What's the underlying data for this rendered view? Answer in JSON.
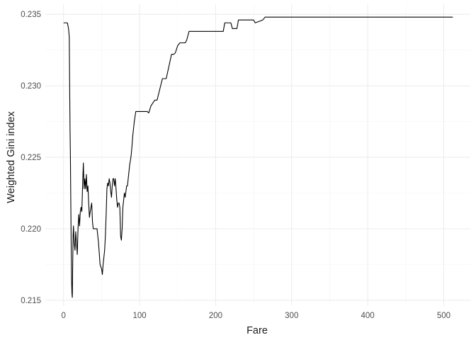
{
  "chart_data": {
    "type": "line",
    "title": "",
    "xlabel": "Fare",
    "ylabel": "Weighted Gini index",
    "xlim": [
      -24,
      535
    ],
    "ylim": [
      0.2146,
      0.2357
    ],
    "x_ticks": [
      0,
      100,
      200,
      300,
      400,
      500
    ],
    "y_ticks": [
      0.215,
      0.22,
      0.225,
      0.23,
      0.235
    ],
    "x_tick_labels": [
      "0",
      "100",
      "200",
      "300",
      "400",
      "500"
    ],
    "y_tick_labels": [
      "0.215",
      "0.220",
      "0.225",
      "0.230",
      "0.235"
    ],
    "grid": true,
    "legend": "none",
    "series": [
      {
        "color": "#000000",
        "x": [
          0,
          5,
          6.5,
          7.5,
          8,
          8.5,
          9,
          9.5,
          10,
          10.5,
          11,
          11.5,
          12,
          12.5,
          13,
          14,
          15,
          16,
          17,
          18,
          19,
          20,
          21,
          22,
          23,
          24,
          25,
          26,
          27,
          28,
          29,
          30,
          31,
          32,
          33,
          34,
          35,
          36,
          37,
          38,
          39,
          40,
          42,
          44,
          46,
          48,
          50,
          51,
          52,
          53,
          54,
          55,
          56,
          57,
          58,
          59,
          60,
          61,
          62,
          63,
          64,
          65,
          66,
          67,
          68,
          69,
          70,
          71,
          72,
          73,
          74,
          75,
          76,
          77,
          78,
          79,
          80,
          81,
          82,
          83,
          84,
          85,
          86,
          87,
          88,
          89,
          90,
          91,
          92,
          93,
          95,
          100,
          108,
          110,
          112,
          115,
          120,
          123,
          130,
          135,
          142,
          145,
          147,
          150,
          153,
          160,
          162,
          165,
          210,
          212,
          220,
          222,
          228,
          230,
          250,
          252,
          262,
          265,
          512
        ],
        "y": [
          0.2344,
          0.2344,
          0.234,
          0.2334,
          0.23,
          0.227,
          0.225,
          0.2218,
          0.219,
          0.2165,
          0.2155,
          0.2152,
          0.2175,
          0.2195,
          0.2202,
          0.219,
          0.2185,
          0.2198,
          0.219,
          0.2182,
          0.22,
          0.221,
          0.2202,
          0.2212,
          0.2215,
          0.2212,
          0.223,
          0.2246,
          0.2228,
          0.2235,
          0.2228,
          0.2238,
          0.2226,
          0.223,
          0.2218,
          0.2208,
          0.2212,
          0.2215,
          0.2218,
          0.2205,
          0.22,
          0.22,
          0.22,
          0.22,
          0.219,
          0.2175,
          0.2172,
          0.2168,
          0.2175,
          0.218,
          0.2185,
          0.2195,
          0.221,
          0.2228,
          0.2232,
          0.223,
          0.2235,
          0.2232,
          0.2226,
          0.2222,
          0.223,
          0.2235,
          0.2235,
          0.223,
          0.2235,
          0.2228,
          0.222,
          0.2215,
          0.2218,
          0.2218,
          0.2215,
          0.2195,
          0.2192,
          0.22,
          0.2215,
          0.222,
          0.2225,
          0.2222,
          0.2226,
          0.223,
          0.223,
          0.2235,
          0.224,
          0.2245,
          0.2248,
          0.2252,
          0.2258,
          0.2265,
          0.227,
          0.2275,
          0.2282,
          0.2282,
          0.2282,
          0.2282,
          0.2281,
          0.2286,
          0.229,
          0.229,
          0.2305,
          0.2305,
          0.2322,
          0.2322,
          0.2323,
          0.2328,
          0.233,
          0.233,
          0.2332,
          0.2338,
          0.2338,
          0.2344,
          0.2344,
          0.234,
          0.234,
          0.2346,
          0.2346,
          0.2344,
          0.2346,
          0.2348,
          0.2348
        ]
      }
    ]
  }
}
